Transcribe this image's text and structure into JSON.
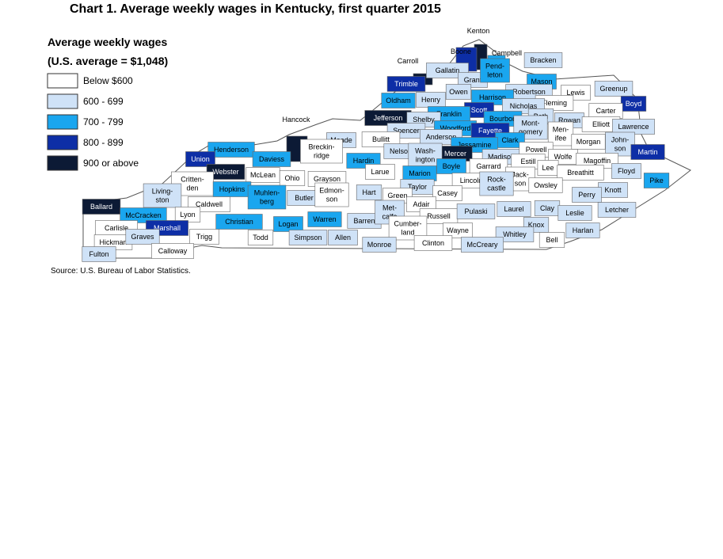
{
  "title": "Chart 1. Average weekly wages in Kentucky, first quarter 2015",
  "legend": {
    "title_lines": [
      "Average weekly wages",
      "(U.S. average = $1,048)"
    ],
    "items": [
      {
        "label": "Below $600",
        "color": "#ffffff"
      },
      {
        "label": "600 - 699",
        "color": "#cfe2f7"
      },
      {
        "label": "700 - 799",
        "color": "#1aa6ef"
      },
      {
        "label": "800 - 899",
        "color": "#0d2ea6"
      },
      {
        "label": "900 or above",
        "color": "#0c1a35"
      }
    ]
  },
  "counties": [
    {
      "name": "Kenton",
      "color": "#0c1a35"
    },
    {
      "name": "Campbell",
      "color": "#1aa6ef"
    },
    {
      "name": "Boone",
      "color": "#0d2ea6"
    },
    {
      "name": "Bracken",
      "color": "#cfe2f7"
    },
    {
      "name": "Carroll",
      "color": "#0c1a35"
    },
    {
      "name": "Gallatin",
      "color": "#cfe2f7"
    },
    {
      "name": "Grant",
      "color": "#cfe2f7"
    },
    {
      "name": [
        "Pend-",
        "leton"
      ],
      "color": "#1aa6ef"
    },
    {
      "name": "Mason",
      "color": "#1aa6ef"
    },
    {
      "name": "Owen",
      "color": "#cfe2f7"
    },
    {
      "name": "Henry",
      "color": "#cfe2f7"
    },
    {
      "name": "Oldham",
      "color": "#1aa6ef"
    },
    {
      "name": "Trimble",
      "color": "#0d2ea6"
    },
    {
      "name": "Robertson",
      "color": "#cfe2f7"
    },
    {
      "name": "Harrison",
      "color": "#1aa6ef"
    },
    {
      "name": "Lewis",
      "color": "#ffffff"
    },
    {
      "name": "Greenup",
      "color": "#cfe2f7"
    },
    {
      "name": "Boyd",
      "color": "#0d2ea6"
    },
    {
      "name": "Fleming",
      "color": "#ffffff"
    },
    {
      "name": "Nicholas",
      "color": "#cfe2f7"
    },
    {
      "name": "Scott",
      "color": "#0d2ea6"
    },
    {
      "name": "Franklin",
      "color": "#1aa6ef"
    },
    {
      "name": "Carter",
      "color": "#ffffff"
    },
    {
      "name": "Bath",
      "color": "#cfe2f7"
    },
    {
      "name": "Bourbon",
      "color": "#1aa6ef"
    },
    {
      "name": "Rowan",
      "color": "#cfe2f7"
    },
    {
      "name": "Jefferson",
      "color": "#0c1a35"
    },
    {
      "name": "Shelby",
      "color": "#cfe2f7"
    },
    {
      "name": "Elliott",
      "color": "#ffffff"
    },
    {
      "name": "Lawrence",
      "color": "#cfe2f7"
    },
    {
      "name": "Woodford",
      "color": "#1aa6ef"
    },
    {
      "name": "Fayette",
      "color": "#0d2ea6"
    },
    {
      "name": [
        "Mont-",
        "gomery"
      ],
      "color": "#cfe2f7"
    },
    {
      "name": "Spencer",
      "color": "#cfe2f7"
    },
    {
      "name": [
        "Men-",
        "ifee"
      ],
      "color": "#ffffff"
    },
    {
      "name": "Morgan",
      "color": "#ffffff"
    },
    {
      "name": [
        "John-",
        "son"
      ],
      "color": "#cfe2f7"
    },
    {
      "name": "Martin",
      "color": "#0d2ea6"
    },
    {
      "name": "Anderson",
      "color": "#cfe2f7"
    },
    {
      "name": "Clark",
      "color": "#1aa6ef"
    },
    {
      "name": "Jessamine",
      "color": "#1aa6ef"
    },
    {
      "name": "Mercer",
      "color": "#0c1a35"
    },
    {
      "name": "Bullitt",
      "color": "#ffffff"
    },
    {
      "name": "Meade",
      "color": "#cfe2f7"
    },
    {
      "name": "Hancock",
      "color": "#0c1a35"
    },
    {
      "name": [
        "Breckin-",
        "ridge"
      ],
      "color": "#ffffff"
    },
    {
      "name": "Nelson",
      "color": "#cfe2f7"
    },
    {
      "name": "Madison",
      "color": "#cfe2f7"
    },
    {
      "name": "Powell",
      "color": "#ffffff"
    },
    {
      "name": "Wolfe",
      "color": "#ffffff"
    },
    {
      "name": "Magoffin",
      "color": "#ffffff"
    },
    {
      "name": "Henderson",
      "color": "#1aa6ef"
    },
    {
      "name": "Daviess",
      "color": "#1aa6ef"
    },
    {
      "name": "Union",
      "color": "#0d2ea6"
    },
    {
      "name": "Hardin",
      "color": "#1aa6ef"
    },
    {
      "name": [
        "Wash-",
        "ington"
      ],
      "color": "#cfe2f7"
    },
    {
      "name": "Boyle",
      "color": "#1aa6ef"
    },
    {
      "name": "Garrard",
      "color": "#ffffff"
    },
    {
      "name": "Estill",
      "color": "#ffffff"
    },
    {
      "name": "Lee",
      "color": "#ffffff"
    },
    {
      "name": "Breathitt",
      "color": "#ffffff"
    },
    {
      "name": "Floyd",
      "color": "#cfe2f7"
    },
    {
      "name": "Webster",
      "color": "#0c1a35"
    },
    {
      "name": "McLean",
      "color": "#ffffff"
    },
    {
      "name": "Ohio",
      "color": "#ffffff"
    },
    {
      "name": "Grayson",
      "color": "#ffffff"
    },
    {
      "name": "Larue",
      "color": "#ffffff"
    },
    {
      "name": "Marion",
      "color": "#1aa6ef"
    },
    {
      "name": "Lincoln",
      "color": "#ffffff"
    },
    {
      "name": [
        "Jack-",
        "son"
      ],
      "color": "#ffffff"
    },
    {
      "name": "Owsley",
      "color": "#ffffff"
    },
    {
      "name": "Pike",
      "color": "#1aa6ef"
    },
    {
      "name": [
        "Critten-",
        "den"
      ],
      "color": "#ffffff"
    },
    {
      "name": "Hopkins",
      "color": "#1aa6ef"
    },
    {
      "name": "Taylor",
      "color": "#cfe2f7"
    },
    {
      "name": "Casey",
      "color": "#ffffff"
    },
    {
      "name": [
        "Rock-",
        "castle"
      ],
      "color": "#cfe2f7"
    },
    {
      "name": "Knott",
      "color": "#cfe2f7"
    },
    {
      "name": [
        "Living-",
        "ston"
      ],
      "color": "#cfe2f7"
    },
    {
      "name": "Caldwell",
      "color": "#ffffff"
    },
    {
      "name": [
        "Muhlen-",
        "berg"
      ],
      "color": "#1aa6ef"
    },
    {
      "name": "Butler",
      "color": "#cfe2f7"
    },
    {
      "name": [
        "Edmon-",
        "son"
      ],
      "color": "#ffffff"
    },
    {
      "name": "Hart",
      "color": "#cfe2f7"
    },
    {
      "name": "Green",
      "color": "#ffffff"
    },
    {
      "name": "Perry",
      "color": "#cfe2f7"
    },
    {
      "name": "Adair",
      "color": "#ffffff"
    },
    {
      "name": "Ballard",
      "color": "#0c1a35"
    },
    {
      "name": "McCracken",
      "color": "#1aa6ef"
    },
    {
      "name": "Lyon",
      "color": "#ffffff"
    },
    {
      "name": "Christian",
      "color": "#1aa6ef"
    },
    {
      "name": "Logan",
      "color": "#1aa6ef"
    },
    {
      "name": "Warren",
      "color": "#1aa6ef"
    },
    {
      "name": "Barren",
      "color": "#cfe2f7"
    },
    {
      "name": [
        "Met-",
        "calfe"
      ],
      "color": "#cfe2f7"
    },
    {
      "name": "Russell",
      "color": "#ffffff"
    },
    {
      "name": "Pulaski",
      "color": "#cfe2f7"
    },
    {
      "name": "Laurel",
      "color": "#cfe2f7"
    },
    {
      "name": "Clay",
      "color": "#cfe2f7"
    },
    {
      "name": "Leslie",
      "color": "#cfe2f7"
    },
    {
      "name": "Letcher",
      "color": "#cfe2f7"
    },
    {
      "name": "Marshall",
      "color": "#0d2ea6"
    },
    {
      "name": "Carlisle",
      "color": "#ffffff"
    },
    {
      "name": "Knox",
      "color": "#cfe2f7"
    },
    {
      "name": [
        "Cumber-",
        "land"
      ],
      "color": "#ffffff"
    },
    {
      "name": "Wayne",
      "color": "#ffffff"
    },
    {
      "name": "Harlan",
      "color": "#cfe2f7"
    },
    {
      "name": "Hickman",
      "color": "#ffffff"
    },
    {
      "name": "Graves",
      "color": "#cfe2f7"
    },
    {
      "name": "Trigg",
      "color": "#ffffff"
    },
    {
      "name": "Todd",
      "color": "#ffffff"
    },
    {
      "name": "Simpson",
      "color": "#cfe2f7"
    },
    {
      "name": "Allen",
      "color": "#cfe2f7"
    },
    {
      "name": "Whitley",
      "color": "#cfe2f7"
    },
    {
      "name": "Bell",
      "color": "#ffffff"
    },
    {
      "name": "Monroe",
      "color": "#cfe2f7"
    },
    {
      "name": "Clinton",
      "color": "#ffffff"
    },
    {
      "name": "McCreary",
      "color": "#cfe2f7"
    },
    {
      "name": "Calloway",
      "color": "#ffffff"
    },
    {
      "name": "Fulton",
      "color": "#cfe2f7"
    }
  ],
  "source": "Source: U.S. Bureau of Labor Statistics."
}
